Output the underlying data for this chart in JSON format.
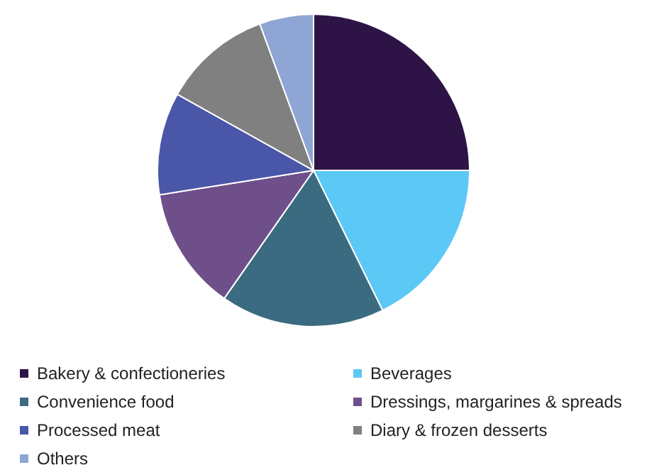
{
  "chart_data": {
    "type": "pie",
    "categories": [
      "Bakery & confectioneries",
      "Beverages",
      "Convenience food",
      "Dressings, margarines & spreads",
      "Processed meat",
      "Diary & frozen desserts",
      "Others"
    ],
    "values": [
      25,
      17.7,
      17,
      12.8,
      10.6,
      11.3,
      5.6
    ],
    "colors": [
      "#2e1446",
      "#5bc8f5",
      "#3a6b80",
      "#6e4f8a",
      "#4a56a8",
      "#808080",
      "#8fa6d4"
    ],
    "legend": "bottom"
  }
}
